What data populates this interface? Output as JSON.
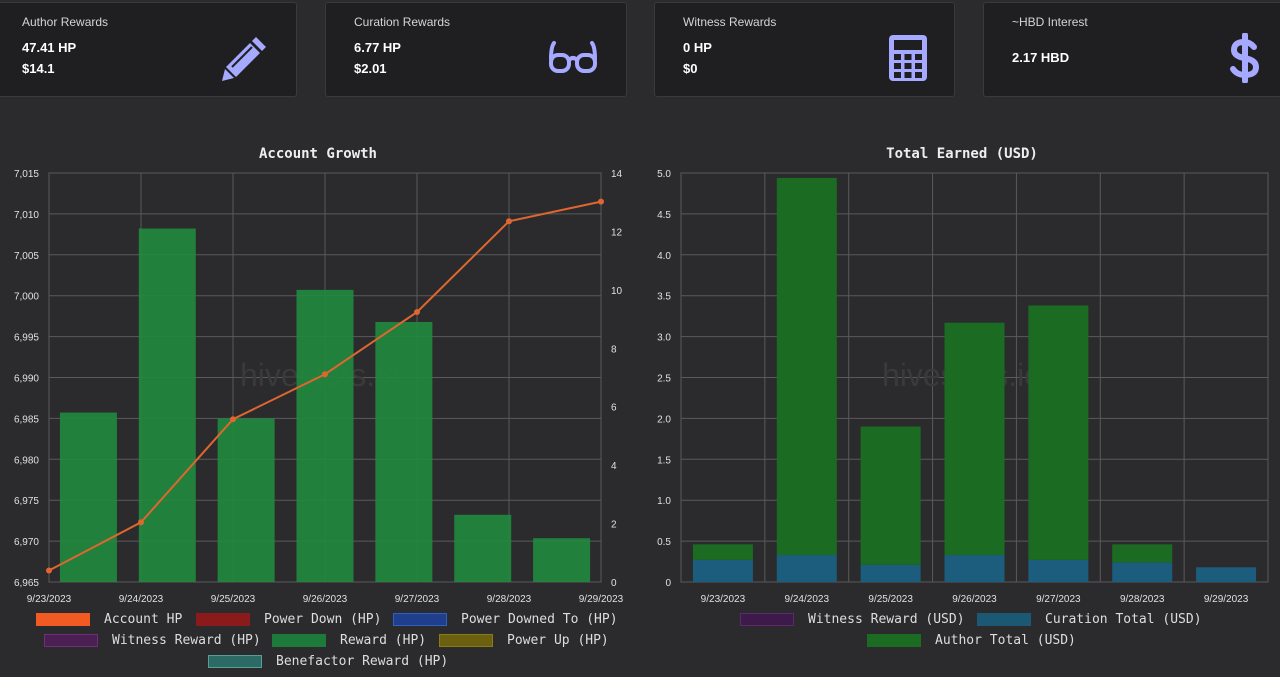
{
  "cards": [
    {
      "title": "Author Rewards",
      "line1": "47.41 HP",
      "line2": "$14.1",
      "icon": "pencil-icon"
    },
    {
      "title": "Curation Rewards",
      "line1": "6.77 HP",
      "line2": "$2.01",
      "icon": "glasses-icon"
    },
    {
      "title": "Witness Rewards",
      "line1": "0 HP",
      "line2": "$0",
      "icon": "calculator-icon"
    },
    {
      "title": "~HBD Interest",
      "line1": "2.17 HBD",
      "icon": "dollar-icon"
    }
  ],
  "colors": {
    "icon": "#a5a9ff",
    "account_hp": "#e0662f",
    "reward_bar": "#1f8a3e",
    "author_bar": "#1c6b22",
    "curation_bar": "#1c5c7c"
  },
  "watermark": "hivestats.io",
  "chart_data": [
    {
      "type": "bar+line",
      "title": "Account Growth",
      "categories": [
        "9/23/2023",
        "9/24/2023",
        "9/25/2023",
        "9/26/2023",
        "9/27/2023",
        "9/28/2023",
        "9/29/2023"
      ],
      "left_axis": {
        "min": 6965,
        "max": 7015,
        "ticks": [
          "7,015",
          "7,010",
          "7,005",
          "7,000",
          "6,995",
          "6,990",
          "6,985",
          "6,980",
          "6,975",
          "6,970",
          "6,965"
        ]
      },
      "right_axis": {
        "min": 0,
        "max": 14,
        "ticks": [
          "14",
          "12",
          "10",
          "8",
          "6",
          "4",
          "2",
          "0"
        ]
      },
      "series": [
        {
          "name": "Account HP",
          "type": "line",
          "axis": "left",
          "values": [
            6966.4,
            6972.3,
            6984.9,
            6990.4,
            6998.0,
            7009.1,
            7011.5
          ]
        },
        {
          "name": "Power Down (HP)",
          "type": "bar",
          "values": [
            0,
            0,
            0,
            0,
            0,
            0,
            0
          ]
        },
        {
          "name": "Power Downed To (HP)",
          "type": "bar",
          "values": [
            0,
            0,
            0,
            0,
            0,
            0,
            0
          ]
        },
        {
          "name": "Witness Reward (HP)",
          "type": "bar",
          "values": [
            0,
            0,
            0,
            0,
            0,
            0,
            0
          ]
        },
        {
          "name": "Reward (HP)",
          "type": "bar",
          "axis": "right",
          "values": [
            5.8,
            12.1,
            5.6,
            10.0,
            8.9,
            2.3,
            1.5
          ]
        },
        {
          "name": "Power Up (HP)",
          "type": "bar",
          "values": [
            0,
            0,
            0,
            0,
            0,
            0,
            0
          ]
        },
        {
          "name": "Benefactor Reward (HP)",
          "type": "bar",
          "values": [
            0,
            0,
            0,
            0,
            0,
            0,
            0
          ]
        }
      ],
      "legend": [
        {
          "label": "Account HP",
          "fill": "#f15a22",
          "border": "#f15a22"
        },
        {
          "label": "Power Down (HP)",
          "fill": "#8b1a1a",
          "border": "#8b1a1a"
        },
        {
          "label": "Power Downed To (HP)",
          "fill": "#1f3f8c",
          "border": "#3060c0"
        },
        {
          "label": "Witness Reward (HP)",
          "fill": "#4a1f52",
          "border": "#6d3079"
        },
        {
          "label": "Reward (HP)",
          "fill": "#1e7a3a",
          "border": "#1e7a3a"
        },
        {
          "label": "Power Up (HP)",
          "fill": "#6b6010",
          "border": "#8a7c14"
        },
        {
          "label": "Benefactor Reward (HP)",
          "fill": "#2c6a66",
          "border": "#5a9c98"
        }
      ]
    },
    {
      "type": "stacked-bar",
      "title": "Total Earned (USD)",
      "categories": [
        "9/23/2023",
        "9/24/2023",
        "9/25/2023",
        "9/26/2023",
        "9/27/2023",
        "9/28/2023",
        "9/29/2023"
      ],
      "y_axis": {
        "min": 0,
        "max": 5,
        "ticks": [
          "5.0",
          "4.5",
          "4.0",
          "3.5",
          "3.0",
          "2.5",
          "2.0",
          "1.5",
          "1.0",
          "0.5",
          "0"
        ]
      },
      "series": [
        {
          "name": "Witness Reward (USD)",
          "values": [
            0,
            0,
            0,
            0,
            0,
            0,
            0
          ]
        },
        {
          "name": "Curation Total (USD)",
          "values": [
            0.27,
            0.33,
            0.21,
            0.33,
            0.27,
            0.24,
            0.18
          ]
        },
        {
          "name": "Author Total (USD)",
          "values": [
            0.19,
            4.61,
            1.69,
            2.84,
            3.11,
            0.22,
            0
          ]
        }
      ],
      "legend": [
        {
          "label": "Witness Reward (USD)",
          "fill": "#3d1a4a",
          "border": "#5a2a6a"
        },
        {
          "label": "Curation Total (USD)",
          "fill": "#1b5873",
          "border": "#1b5873"
        },
        {
          "label": "Author Total (USD)",
          "fill": "#1c6b22",
          "border": "#1c6b22"
        }
      ]
    }
  ]
}
